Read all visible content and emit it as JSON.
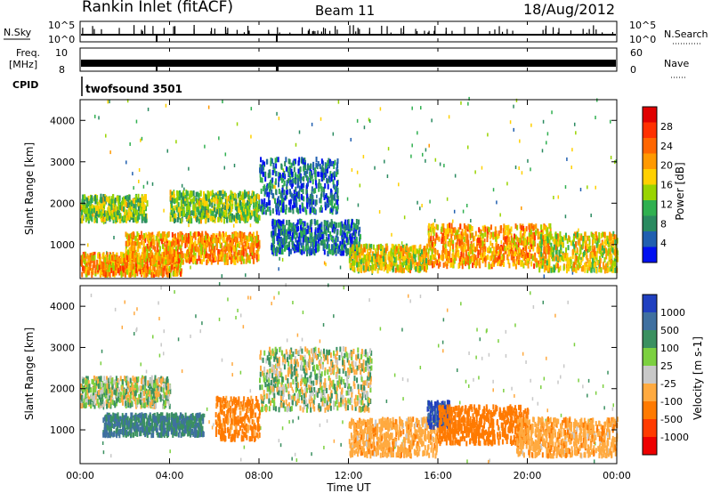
{
  "header": {
    "station": "Rankin Inlet (fitACF)",
    "beam": "Beam 11",
    "date": "18/Aug/2012"
  },
  "top_panels": {
    "nsky_label": "N.Sky",
    "nsearch_label": "N.Search",
    "freq_label_line1": "Freq.",
    "freq_label_line2": "[MHz]",
    "nave_label": "Nave",
    "cpid_label": "CPID",
    "cpid_value": "twofsound 3501",
    "nsky_ticks": [
      "10^5",
      "10^0"
    ],
    "nsearch_ticks": [
      "10^5",
      "10^0"
    ],
    "freq_ticks": [
      "10",
      "8"
    ],
    "nave_ticks": [
      "60",
      "0"
    ]
  },
  "x_axis": {
    "label": "Time UT",
    "ticks": [
      "00:00",
      "04:00",
      "08:00",
      "12:00",
      "16:00",
      "20:00",
      "00:00"
    ]
  },
  "power_colorbar": {
    "label": "Power [dB]",
    "ticks": [
      "28",
      "24",
      "20",
      "16",
      "12",
      "8",
      "4"
    ],
    "colors": [
      "#e00000",
      "#ff3000",
      "#ff6600",
      "#ff9900",
      "#ffd000",
      "#99d400",
      "#30b050",
      "#2a8a60",
      "#205fb0",
      "#0010f0"
    ]
  },
  "velocity_colorbar": {
    "label": "Velocity [m s-1]",
    "ticks": [
      "1000",
      "500",
      "100",
      "25",
      "-25",
      "-100",
      "-500",
      "-1000"
    ],
    "colors": [
      "#2040c0",
      "#3f70a0",
      "#3a9060",
      "#7cd040",
      "#c8c8c8",
      "#ffaa40",
      "#ff7a00",
      "#ff3b00",
      "#ee0000"
    ]
  },
  "chart_data": [
    {
      "type": "heatmap",
      "title": "Power",
      "xlabel": "Time UT",
      "ylabel": "Slant Range [km]",
      "x_ticks": [
        "00:00",
        "04:00",
        "08:00",
        "12:00",
        "16:00",
        "20:00",
        "00:00"
      ],
      "x_range_hours": [
        0,
        24
      ],
      "y_ticks": [
        1000,
        2000,
        3000,
        4000
      ],
      "ylim": [
        180,
        4500
      ],
      "colorbar_label": "Power [dB]",
      "colorbar_ticks": [
        28,
        24,
        20,
        16,
        12,
        8,
        4
      ],
      "backscatter_regions": [
        {
          "t_start": 0.0,
          "t_end": 4.5,
          "range_start": 200,
          "range_end": 700,
          "power_db": 28
        },
        {
          "t_start": 0.0,
          "t_end": 3.0,
          "range_start": 1500,
          "range_end": 2100,
          "power_db": 20
        },
        {
          "t_start": 2.0,
          "t_end": 8.0,
          "range_start": 500,
          "range_end": 1200,
          "power_db": 28
        },
        {
          "t_start": 4.0,
          "t_end": 8.0,
          "range_start": 1500,
          "range_end": 2200,
          "power_db": 20
        },
        {
          "t_start": 8.0,
          "t_end": 11.5,
          "range_start": 1700,
          "range_end": 3000,
          "power_db": 12
        },
        {
          "t_start": 8.5,
          "t_end": 12.5,
          "range_start": 700,
          "range_end": 1500,
          "power_db": 12
        },
        {
          "t_start": 12.0,
          "t_end": 15.5,
          "range_start": 300,
          "range_end": 900,
          "power_db": 24
        },
        {
          "t_start": 15.5,
          "t_end": 21.0,
          "range_start": 400,
          "range_end": 1400,
          "power_db": 28
        },
        {
          "t_start": 20.5,
          "t_end": 24.0,
          "range_start": 300,
          "range_end": 1200,
          "power_db": 24
        }
      ]
    },
    {
      "type": "heatmap",
      "title": "Velocity",
      "xlabel": "Time UT",
      "ylabel": "Slant Range [km]",
      "x_ticks": [
        "00:00",
        "04:00",
        "08:00",
        "12:00",
        "16:00",
        "20:00",
        "00:00"
      ],
      "x_range_hours": [
        0,
        24
      ],
      "y_ticks": [
        1000,
        2000,
        3000,
        4000
      ],
      "ylim": [
        180,
        4500
      ],
      "colorbar_label": "Velocity [m s-1]",
      "colorbar_ticks": [
        1000,
        500,
        100,
        25,
        -25,
        -100,
        -500,
        -1000
      ],
      "backscatter_regions": [
        {
          "t_start": 0.0,
          "t_end": 4.0,
          "range_start": 1500,
          "range_end": 2200,
          "velocity": 0
        },
        {
          "t_start": 1.0,
          "t_end": 5.5,
          "range_start": 800,
          "range_end": 1300,
          "velocity": 300
        },
        {
          "t_start": 6.0,
          "t_end": 8.0,
          "range_start": 700,
          "range_end": 1700,
          "velocity": -400
        },
        {
          "t_start": 8.0,
          "t_end": 13.0,
          "range_start": 1400,
          "range_end": 2900,
          "velocity": 0
        },
        {
          "t_start": 12.0,
          "t_end": 16.0,
          "range_start": 300,
          "range_end": 1200,
          "velocity": -200
        },
        {
          "t_start": 15.5,
          "t_end": 16.5,
          "range_start": 1000,
          "range_end": 1600,
          "velocity": 800
        },
        {
          "t_start": 16.0,
          "t_end": 20.0,
          "range_start": 600,
          "range_end": 1500,
          "velocity": -500
        },
        {
          "t_start": 19.5,
          "t_end": 24.0,
          "range_start": 300,
          "range_end": 1200,
          "velocity": -200
        }
      ]
    }
  ]
}
